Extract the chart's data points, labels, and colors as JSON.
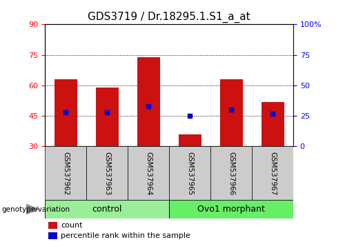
{
  "title": "GDS3719 / Dr.18295.1.S1_a_at",
  "categories": [
    "GSM537962",
    "GSM537963",
    "GSM537964",
    "GSM537965",
    "GSM537966",
    "GSM537967"
  ],
  "bar_bottom": 30,
  "bar_tops": [
    63,
    59,
    74,
    36,
    63,
    52
  ],
  "blue_pcts": [
    28,
    28,
    33,
    25,
    30,
    27
  ],
  "ylim_left": [
    30,
    90
  ],
  "ylim_right": [
    0,
    100
  ],
  "yticks_left": [
    30,
    45,
    60,
    75,
    90
  ],
  "yticks_right": [
    0,
    25,
    50,
    75,
    100
  ],
  "bar_color": "#cc1111",
  "blue_color": "#0000cc",
  "bar_width": 0.55,
  "group_labels": [
    "control",
    "Ovo1 morphant"
  ],
  "group_colors": [
    "#99ee99",
    "#66ee66"
  ],
  "group_ranges": [
    [
      0,
      3
    ],
    [
      3,
      6
    ]
  ],
  "legend_count_label": "count",
  "legend_pct_label": "percentile rank within the sample",
  "genotype_label": "genotype/variation",
  "title_fontsize": 11,
  "tick_fontsize": 8,
  "label_fontsize": 8
}
